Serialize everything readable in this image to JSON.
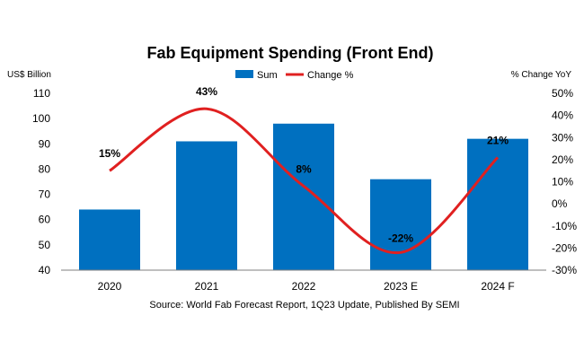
{
  "chart_data": {
    "type": "bar",
    "title": "Fab Equipment Spending (Front End)",
    "categories": [
      "2020",
      "2021",
      "2022",
      "2023 E",
      "2024 F"
    ],
    "series": [
      {
        "name": "Sum",
        "kind": "bar",
        "axis": "left",
        "values": [
          64,
          91,
          98,
          76,
          92
        ]
      },
      {
        "name": "Change %",
        "kind": "line",
        "axis": "right",
        "values": [
          15,
          43,
          8,
          -22,
          21
        ]
      }
    ],
    "data_labels": [
      "15%",
      "43%",
      "8%",
      "-22%",
      "21%"
    ],
    "ylabel_left": "US$ Billion",
    "ylabel_right": "% Change YoY",
    "ylim_left": [
      40,
      110
    ],
    "yticks_left": [
      "40",
      "50",
      "60",
      "70",
      "80",
      "90",
      "100",
      "110"
    ],
    "ylim_right": [
      -30,
      50
    ],
    "yticks_right": [
      "-30%",
      "-20%",
      "-10%",
      "0%",
      "10%",
      "20%",
      "30%",
      "40%",
      "50%"
    ],
    "source": "Source: World Fab Forecast Report, 1Q23 Update, Published By SEMI",
    "colors": {
      "bar": "#0070C0",
      "line": "#E02020",
      "axis": "#7f7f7f"
    }
  }
}
